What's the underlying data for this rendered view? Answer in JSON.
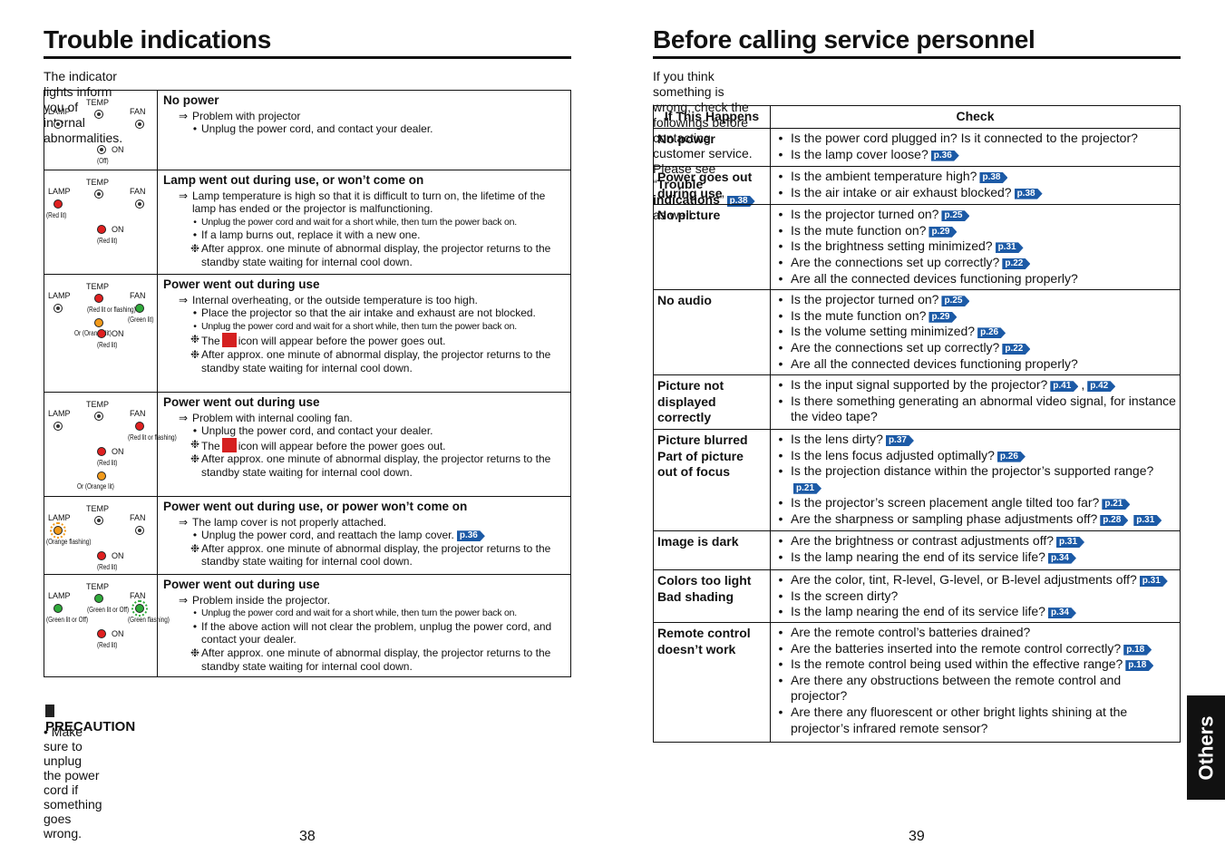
{
  "left": {
    "title": "Trouble indications",
    "intro": "The indicator lights inform you of internal abnormalities.",
    "rows": [
      {
        "lights": {
          "lamp": {
            "label": "LAMP",
            "color": "off"
          },
          "temp": {
            "label": "TEMP",
            "color": "off"
          },
          "fan": {
            "label": "FAN",
            "color": "off"
          },
          "on": {
            "label": "ON",
            "color": "off",
            "note": "(Off)"
          }
        },
        "heading": "No power",
        "items": [
          {
            "kind": "a",
            "mark": "⇒",
            "text": "Problem with projector"
          },
          {
            "kind": "b",
            "mark": "•",
            "text": "Unplug the power cord, and contact your dealer."
          }
        ]
      },
      {
        "lights": {
          "lamp": {
            "label": "LAMP",
            "color": "red",
            "note": "(Red lit)"
          },
          "temp": {
            "label": "TEMP",
            "color": "off"
          },
          "fan": {
            "label": "FAN",
            "color": "off"
          },
          "on": {
            "label": "ON",
            "color": "red",
            "note": "(Red lit)"
          }
        },
        "heading": "Lamp went out during use, or won’t come on",
        "items": [
          {
            "kind": "a",
            "mark": "⇒",
            "text": "Lamp temperature is high so that it is difficult to turn on, the lifetime of the lamp has ended or the projector is malfunctioning."
          },
          {
            "kind": "b",
            "mark": "•",
            "text": "Unplug the power cord and wait for a short while, then turn the power back on.",
            "small": true
          },
          {
            "kind": "b",
            "mark": "•",
            "text": "If a lamp burns out, replace it with a new one."
          },
          {
            "kind": "n",
            "mark": "❉",
            "text": "After approx. one minute of abnormal display, the projector returns to the standby state waiting for internal cool down."
          }
        ]
      },
      {
        "lights": {
          "lamp": {
            "label": "LAMP",
            "color": "off"
          },
          "temp": {
            "label": "TEMP",
            "color": "red",
            "note": "(Red lit or flashing)",
            "extra": {
              "text": "Or (Orange lit)",
              "color": "orange"
            }
          },
          "fan": {
            "label": "FAN",
            "color": "green",
            "note": "(Green lit)"
          },
          "on": {
            "label": "ON",
            "color": "red",
            "note": "(Red lit)"
          }
        },
        "heading": "Power went out during use",
        "items": [
          {
            "kind": "a",
            "mark": "⇒",
            "text": "Internal overheating, or the outside temperature is too high."
          },
          {
            "kind": "b",
            "mark": "•",
            "text": "Place the projector so that the air intake and exhaust are not blocked."
          },
          {
            "kind": "b",
            "mark": "•",
            "text": "Unplug the power cord and wait for a short while, then turn the power back on.",
            "small": true
          },
          {
            "kind": "n",
            "mark": "❉",
            "text": "The",
            "after": "icon will appear before the power goes out."
          },
          {
            "kind": "n",
            "mark": "❉",
            "text": "After approx. one minute of abnormal display, the projector returns to the standby state waiting for internal cool down."
          }
        ]
      },
      {
        "lights": {
          "lamp": {
            "label": "LAMP",
            "color": "off"
          },
          "temp": {
            "label": "TEMP",
            "color": "off"
          },
          "fan": {
            "label": "FAN",
            "color": "red",
            "note": "(Red lit or flashing)"
          },
          "on": {
            "label": "ON",
            "color": "red",
            "note": "(Red lit)",
            "extra": {
              "text": "Or (Orange lit)",
              "color": "orange"
            }
          }
        },
        "heading": "Power went out during use",
        "items": [
          {
            "kind": "a",
            "mark": "⇒",
            "text": "Problem with internal cooling fan."
          },
          {
            "kind": "b",
            "mark": "•",
            "text": "Unplug the power cord, and contact your dealer."
          },
          {
            "kind": "n",
            "mark": "❉",
            "text": "The",
            "after": "icon will appear before the power goes out."
          },
          {
            "kind": "n",
            "mark": "❉",
            "text": "After approx. one minute of abnormal display, the projector returns to the standby state waiting for internal cool down."
          }
        ]
      },
      {
        "lights": {
          "lamp": {
            "label": "LAMP",
            "color": "orange",
            "flashing": true,
            "note": "(Orange flashing)"
          },
          "temp": {
            "label": "TEMP",
            "color": "off"
          },
          "fan": {
            "label": "FAN",
            "color": "off"
          },
          "on": {
            "label": "ON",
            "color": "red",
            "note": "(Red lit)"
          }
        },
        "heading": "Power went out during use, or power won’t come on",
        "items": [
          {
            "kind": "a",
            "mark": "⇒",
            "text": "The lamp cover is not properly attached."
          },
          {
            "kind": "b",
            "mark": "•",
            "text": "Unplug the power cord, and reattach the lamp cover.",
            "ref": "p.36"
          },
          {
            "kind": "n",
            "mark": "❉",
            "text": "After approx. one minute of abnormal display, the projector returns to the standby state waiting for internal cool down."
          }
        ]
      },
      {
        "lights": {
          "lamp": {
            "label": "LAMP",
            "color": "green",
            "note": "(Green lit or Off)"
          },
          "temp": {
            "label": "TEMP",
            "color": "green",
            "note": "(Green lit or Off)"
          },
          "fan": {
            "label": "FAN",
            "color": "green",
            "flashing": true,
            "note": "(Green flashing)"
          },
          "on": {
            "label": "ON",
            "color": "red",
            "note": "(Red lit)"
          }
        },
        "heading": "Power went out during use",
        "items": [
          {
            "kind": "a",
            "mark": "⇒",
            "text": "Problem inside the projector."
          },
          {
            "kind": "b",
            "mark": "•",
            "text": "Unplug the power cord and wait for a short while, then turn the power back on.",
            "small": true
          },
          {
            "kind": "b",
            "mark": "•",
            "text": "If the above action will not clear the problem, unplug  the power cord, and contact your dealer."
          },
          {
            "kind": "n",
            "mark": "❉",
            "text": "After approx. one minute of abnormal display, the projector returns to the standby state waiting for internal cool down."
          }
        ]
      }
    ],
    "precaution": {
      "title": "PRECAUTION",
      "mark": "•",
      "text": "Make sure to unplug the power cord if something goes wrong."
    },
    "page": "38"
  },
  "right": {
    "title": "Before calling service personnel",
    "intro1": "If you think something is wrong, check the followings before contacting customer service.",
    "intro2": {
      "before": "Please see “",
      "bold": "Trouble indications",
      "close": "”",
      "ref": "p.38",
      "after": "as well."
    },
    "header": [
      "If  This Happens",
      "Check"
    ],
    "bullet": "•",
    "rows": [
      {
        "label": [
          "No power"
        ],
        "items": [
          {
            "text": "Is the power cord plugged in? Is it connected to the projector?"
          },
          {
            "text": "Is the lamp cover loose?",
            "refs": [
              "p.36"
            ]
          }
        ]
      },
      {
        "label": [
          "Power goes out during use"
        ],
        "items": [
          {
            "text": "Is the ambient temperature high?",
            "refs": [
              "p.38"
            ]
          },
          {
            "text": "Is the air intake or air exhaust blocked?",
            "refs": [
              "p.38"
            ]
          }
        ]
      },
      {
        "label": [
          "No picture"
        ],
        "items": [
          {
            "text": "Is the projector turned on?",
            "refs": [
              "p.25"
            ]
          },
          {
            "text": "Is the mute function on?",
            "refs": [
              "p.29"
            ]
          },
          {
            "text": "Is the brightness setting minimized?",
            "refs": [
              "p.31"
            ]
          },
          {
            "text": "Are the connections set up correctly?",
            "refs": [
              "p.22"
            ]
          },
          {
            "text": "Are all the connected devices functioning properly?"
          }
        ]
      },
      {
        "label": [
          "No audio"
        ],
        "items": [
          {
            "text": "Is the projector turned on?",
            "refs": [
              "p.25"
            ]
          },
          {
            "text": "Is the mute function on?",
            "refs": [
              "p.29"
            ]
          },
          {
            "text": "Is the volume setting minimized?",
            "refs": [
              "p.26"
            ]
          },
          {
            "text": "Are the connections set up correctly?",
            "refs": [
              "p.22"
            ]
          },
          {
            "text": "Are all the connected devices functioning properly?"
          }
        ]
      },
      {
        "label": [
          "Picture not displayed correctly"
        ],
        "items": [
          {
            "text": "Is the input signal supported by the projector?",
            "refs": [
              "p.41",
              "p.42"
            ],
            "sep": ","
          },
          {
            "text": "Is there something generating an abnormal video signal, for instance the video tape?"
          }
        ]
      },
      {
        "label": [
          "Picture blurred",
          "Part of picture out of focus"
        ],
        "items": [
          {
            "text": "Is the lens dirty?",
            "refs": [
              "p.37"
            ]
          },
          {
            "text": "Is the lens focus adjusted optimally?",
            "refs": [
              "p.26"
            ]
          },
          {
            "text": "Is the projection distance within the projector’s supported range?",
            "refs": [
              "p.21"
            ]
          },
          {
            "text": "Is the projector’s screen placement angle tilted too far?",
            "refs": [
              "p.21"
            ]
          },
          {
            "text": "Are the sharpness or sampling phase adjustments off?",
            "refs": [
              "p.28",
              "p.31"
            ]
          }
        ]
      },
      {
        "label": [
          "Image is dark"
        ],
        "items": [
          {
            "text": "Are the brightness or contrast adjustments off?",
            "refs": [
              "p.31"
            ]
          },
          {
            "text": "Is the lamp nearing the end of its service life?",
            "refs": [
              "p.34"
            ]
          }
        ]
      },
      {
        "label": [
          "Colors too light",
          "Bad shading"
        ],
        "items": [
          {
            "text": "Are the color, tint, R-level, G-level, or B-level adjustments off?",
            "refs": [
              "p.31"
            ]
          },
          {
            "text": "Is the screen dirty?"
          },
          {
            "text": "Is the lamp nearing the end of its service life?",
            "refs": [
              "p.34"
            ]
          }
        ]
      },
      {
        "label": [
          "Remote control doesn’t work"
        ],
        "items": [
          {
            "text": "Are the remote control’s batteries drained?"
          },
          {
            "text": "Are the batteries inserted into the remote control correctly?",
            "refs": [
              "p.18"
            ]
          },
          {
            "text": "Is the remote control being used within the effective range?",
            "refs": [
              "p.18"
            ]
          },
          {
            "text": "Are there any obstructions between the remote control and projector?"
          },
          {
            "text": "Are there any fluorescent or other bright lights shining at the projector’s infrared remote sensor?"
          }
        ]
      }
    ],
    "page": "39",
    "tab": "Others"
  }
}
